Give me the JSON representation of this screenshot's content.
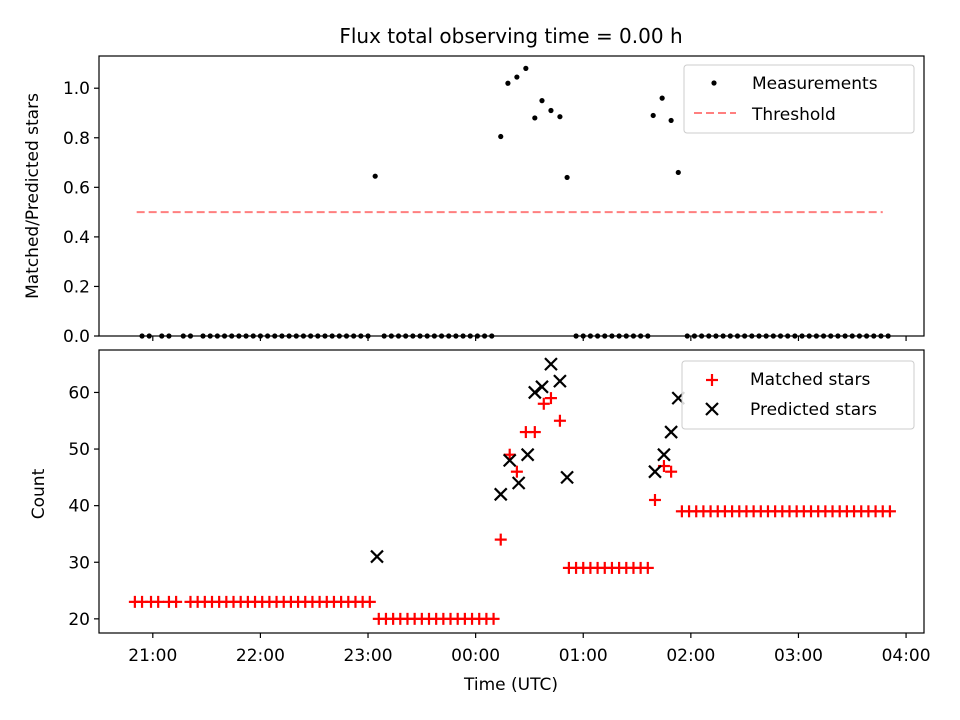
{
  "chart_data": [
    {
      "type": "scatter",
      "title": "Flux total observing time = 0.00 h",
      "xlabel": "",
      "ylabel": "Matched/Predicted stars",
      "ylim": [
        0,
        1.13
      ],
      "xlim": [
        "20:30",
        "04:10"
      ],
      "yticks": [
        "0.0",
        "0.2",
        "0.4",
        "0.6",
        "0.8",
        "1.0"
      ],
      "legend_position": "top-right",
      "series": [
        {
          "name": "Measurements",
          "style": "dot",
          "color": "#000000",
          "points": [
            [
              "20:54",
              0
            ],
            [
              "20:58",
              0
            ],
            [
              "21:05",
              0
            ],
            [
              "21:09",
              0
            ],
            [
              "21:17",
              0
            ],
            [
              "21:21",
              0
            ],
            [
              "21:28",
              0
            ],
            [
              "21:32",
              0
            ],
            [
              "21:36",
              0
            ],
            [
              "21:40",
              0
            ],
            [
              "21:44",
              0
            ],
            [
              "21:48",
              0
            ],
            [
              "21:52",
              0
            ],
            [
              "21:56",
              0
            ],
            [
              "22:00",
              0
            ],
            [
              "22:04",
              0
            ],
            [
              "22:08",
              0
            ],
            [
              "22:12",
              0
            ],
            [
              "22:16",
              0
            ],
            [
              "22:20",
              0
            ],
            [
              "22:24",
              0
            ],
            [
              "22:28",
              0
            ],
            [
              "22:32",
              0
            ],
            [
              "22:36",
              0
            ],
            [
              "22:40",
              0
            ],
            [
              "22:44",
              0
            ],
            [
              "22:48",
              0
            ],
            [
              "22:52",
              0
            ],
            [
              "22:56",
              0
            ],
            [
              "23:00",
              0
            ],
            [
              "23:04",
              0.645
            ],
            [
              "23:09",
              0
            ],
            [
              "23:13",
              0
            ],
            [
              "23:17",
              0
            ],
            [
              "23:21",
              0
            ],
            [
              "23:25",
              0
            ],
            [
              "23:29",
              0
            ],
            [
              "23:33",
              0
            ],
            [
              "23:37",
              0
            ],
            [
              "23:41",
              0
            ],
            [
              "23:45",
              0
            ],
            [
              "23:49",
              0
            ],
            [
              "23:53",
              0
            ],
            [
              "23:57",
              0
            ],
            [
              "00:01",
              0
            ],
            [
              "00:05",
              0
            ],
            [
              "00:09",
              0
            ],
            [
              "00:14",
              0.805
            ],
            [
              "00:18",
              1.02
            ],
            [
              "00:23",
              1.045
            ],
            [
              "00:28",
              1.08
            ],
            [
              "00:33",
              0.88
            ],
            [
              "00:37",
              0.95
            ],
            [
              "00:42",
              0.91
            ],
            [
              "00:47",
              0.885
            ],
            [
              "00:51",
              0.64
            ],
            [
              "00:56",
              0
            ],
            [
              "01:00",
              0
            ],
            [
              "01:04",
              0
            ],
            [
              "01:08",
              0
            ],
            [
              "01:12",
              0
            ],
            [
              "01:16",
              0
            ],
            [
              "01:20",
              0
            ],
            [
              "01:24",
              0
            ],
            [
              "01:28",
              0
            ],
            [
              "01:32",
              0
            ],
            [
              "01:36",
              0
            ],
            [
              "01:39",
              0.89
            ],
            [
              "01:44",
              0.96
            ],
            [
              "01:49",
              0.87
            ],
            [
              "01:53",
              0.66
            ],
            [
              "01:58",
              0
            ],
            [
              "02:02",
              0
            ],
            [
              "02:06",
              0
            ],
            [
              "02:10",
              0
            ],
            [
              "02:14",
              0
            ],
            [
              "02:18",
              0
            ],
            [
              "02:22",
              0
            ],
            [
              "02:26",
              0
            ],
            [
              "02:30",
              0
            ],
            [
              "02:34",
              0
            ],
            [
              "02:38",
              0
            ],
            [
              "02:42",
              0
            ],
            [
              "02:46",
              0
            ],
            [
              "02:50",
              0
            ],
            [
              "02:54",
              0
            ],
            [
              "02:58",
              0
            ],
            [
              "03:02",
              0
            ],
            [
              "03:06",
              0
            ],
            [
              "03:10",
              0
            ],
            [
              "03:14",
              0
            ],
            [
              "03:18",
              0
            ],
            [
              "03:22",
              0
            ],
            [
              "03:26",
              0
            ],
            [
              "03:30",
              0
            ],
            [
              "03:34",
              0
            ],
            [
              "03:38",
              0
            ],
            [
              "03:42",
              0
            ],
            [
              "03:46",
              0
            ],
            [
              "03:50",
              0
            ]
          ]
        },
        {
          "name": "Threshold",
          "style": "dashed-line",
          "color": "#ff7f7f",
          "points": [
            [
              "20:51",
              0.5
            ],
            [
              "03:47",
              0.5
            ]
          ]
        }
      ]
    },
    {
      "type": "scatter",
      "title": "",
      "xlabel": "Time (UTC)",
      "ylabel": "Count",
      "ylim": [
        17.5,
        67.5
      ],
      "xlim": [
        "20:30",
        "04:10"
      ],
      "xticks": [
        "21:00",
        "22:00",
        "23:00",
        "00:00",
        "01:00",
        "02:00",
        "03:00",
        "04:00"
      ],
      "yticks": [
        "20",
        "30",
        "40",
        "50",
        "60"
      ],
      "legend_position": "top-right",
      "series": [
        {
          "name": "Matched stars",
          "style": "plus",
          "color": "#ff0000",
          "points": [
            [
              "20:50",
              23
            ],
            [
              "20:54",
              23
            ],
            [
              "20:59",
              23
            ],
            [
              "21:03",
              23
            ],
            [
              "21:09",
              23
            ],
            [
              "21:13",
              23
            ],
            [
              "21:21",
              23
            ],
            [
              "21:25",
              23
            ],
            [
              "21:29",
              23
            ],
            [
              "21:33",
              23
            ],
            [
              "21:37",
              23
            ],
            [
              "21:41",
              23
            ],
            [
              "21:45",
              23
            ],
            [
              "21:49",
              23
            ],
            [
              "21:53",
              23
            ],
            [
              "21:57",
              23
            ],
            [
              "22:01",
              23
            ],
            [
              "22:05",
              23
            ],
            [
              "22:09",
              23
            ],
            [
              "22:13",
              23
            ],
            [
              "22:17",
              23
            ],
            [
              "22:21",
              23
            ],
            [
              "22:25",
              23
            ],
            [
              "22:29",
              23
            ],
            [
              "22:33",
              23
            ],
            [
              "22:37",
              23
            ],
            [
              "22:41",
              23
            ],
            [
              "22:45",
              23
            ],
            [
              "22:49",
              23
            ],
            [
              "22:53",
              23
            ],
            [
              "22:57",
              23
            ],
            [
              "23:01",
              23
            ],
            [
              "23:06",
              20
            ],
            [
              "23:10",
              20
            ],
            [
              "23:14",
              20
            ],
            [
              "23:18",
              20
            ],
            [
              "23:22",
              20
            ],
            [
              "23:26",
              20
            ],
            [
              "23:30",
              20
            ],
            [
              "23:34",
              20
            ],
            [
              "23:38",
              20
            ],
            [
              "23:42",
              20
            ],
            [
              "23:46",
              20
            ],
            [
              "23:50",
              20
            ],
            [
              "23:54",
              20
            ],
            [
              "23:58",
              20
            ],
            [
              "00:02",
              20
            ],
            [
              "00:06",
              20
            ],
            [
              "00:10",
              20
            ],
            [
              "00:14",
              34
            ],
            [
              "00:19",
              49
            ],
            [
              "00:23",
              46
            ],
            [
              "00:28",
              53
            ],
            [
              "00:33",
              53
            ],
            [
              "00:38",
              58
            ],
            [
              "00:42",
              59
            ],
            [
              "00:47",
              55
            ],
            [
              "00:52",
              29
            ],
            [
              "00:56",
              29
            ],
            [
              "01:00",
              29
            ],
            [
              "01:04",
              29
            ],
            [
              "01:08",
              29
            ],
            [
              "01:12",
              29
            ],
            [
              "01:16",
              29
            ],
            [
              "01:20",
              29
            ],
            [
              "01:24",
              29
            ],
            [
              "01:28",
              29
            ],
            [
              "01:32",
              29
            ],
            [
              "01:36",
              29
            ],
            [
              "01:40",
              41
            ],
            [
              "01:45",
              47
            ],
            [
              "01:49",
              46
            ],
            [
              "01:55",
              39
            ],
            [
              "01:59",
              39
            ],
            [
              "02:03",
              39
            ],
            [
              "02:07",
              39
            ],
            [
              "02:11",
              39
            ],
            [
              "02:15",
              39
            ],
            [
              "02:19",
              39
            ],
            [
              "02:23",
              39
            ],
            [
              "02:27",
              39
            ],
            [
              "02:31",
              39
            ],
            [
              "02:35",
              39
            ],
            [
              "02:39",
              39
            ],
            [
              "02:43",
              39
            ],
            [
              "02:47",
              39
            ],
            [
              "02:51",
              39
            ],
            [
              "02:55",
              39
            ],
            [
              "02:59",
              39
            ],
            [
              "03:03",
              39
            ],
            [
              "03:07",
              39
            ],
            [
              "03:11",
              39
            ],
            [
              "03:15",
              39
            ],
            [
              "03:19",
              39
            ],
            [
              "03:23",
              39
            ],
            [
              "03:27",
              39
            ],
            [
              "03:31",
              39
            ],
            [
              "03:35",
              39
            ],
            [
              "03:39",
              39
            ],
            [
              "03:43",
              39
            ],
            [
              "03:47",
              39
            ],
            [
              "03:51",
              39
            ]
          ]
        },
        {
          "name": "Predicted stars",
          "style": "x",
          "color": "#000000",
          "points": [
            [
              "23:05",
              31
            ],
            [
              "00:14",
              42
            ],
            [
              "00:19",
              48
            ],
            [
              "00:24",
              44
            ],
            [
              "00:29",
              49
            ],
            [
              "00:33",
              60
            ],
            [
              "00:37",
              61
            ],
            [
              "00:42",
              65
            ],
            [
              "00:47",
              62
            ],
            [
              "00:51",
              45
            ],
            [
              "01:40",
              46
            ],
            [
              "01:45",
              49
            ],
            [
              "01:49",
              53
            ],
            [
              "01:53",
              59
            ]
          ]
        }
      ]
    }
  ]
}
